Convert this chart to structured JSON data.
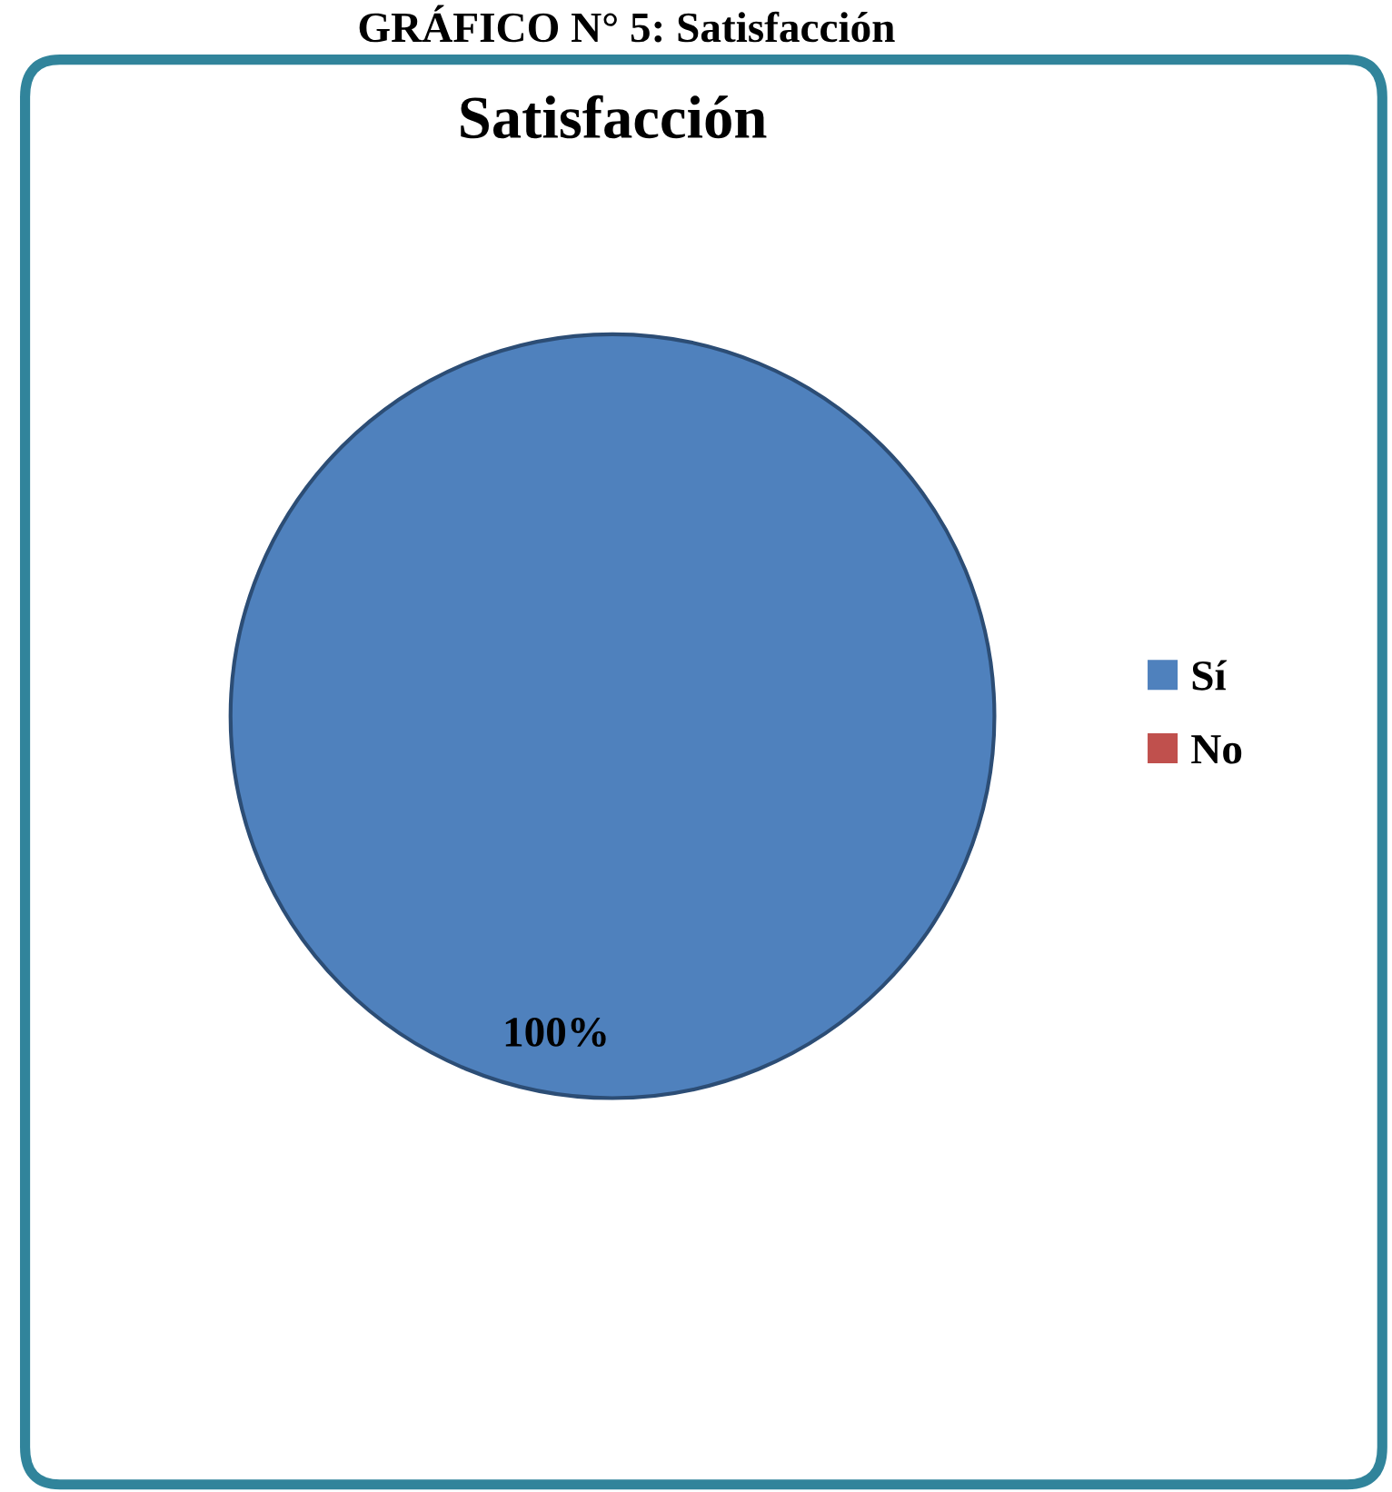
{
  "chart_data": {
    "type": "pie",
    "title": "Satisfacción",
    "annotations": [
      "GRÁFICO N° 5: Satisfacción"
    ],
    "categories": [
      "Sí",
      "No"
    ],
    "values": [
      100,
      0
    ],
    "colors": [
      "#4f81bd",
      "#c0504d"
    ],
    "value_labels": [
      "100%",
      null
    ],
    "legend": "right"
  }
}
